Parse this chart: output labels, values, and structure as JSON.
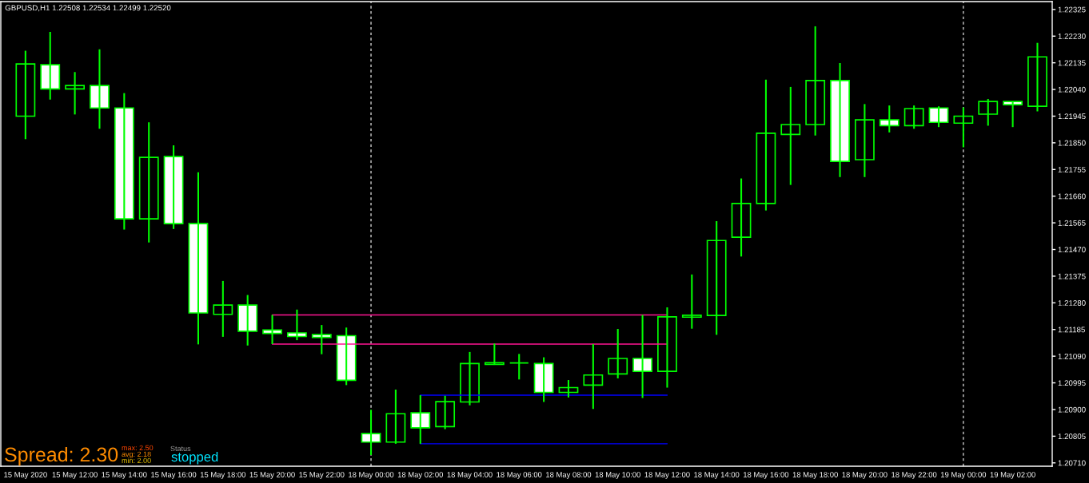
{
  "chart_data": {
    "type": "candlestick",
    "title": "GBPUSD,H1 1.22508 1.22534 1.22499 1.22520",
    "categories": [
      "15 May 2020",
      null,
      "15 May 12:00",
      null,
      "15 May 14:00",
      null,
      "15 May 16:00",
      null,
      "15 May 18:00",
      null,
      "15 May 20:00",
      null,
      "15 May 22:00",
      null,
      "18 May 00:00",
      null,
      "18 May 02:00",
      null,
      "18 May 04:00",
      null,
      "18 May 06:00",
      null,
      "18 May 08:00",
      null,
      "18 May 10:00",
      null,
      "18 May 12:00",
      null,
      "18 May 14:00",
      null,
      "18 May 16:00",
      null,
      "18 May 18:00",
      null,
      "18 May 20:00",
      null,
      "18 May 22:00",
      null,
      "19 May 00:00",
      null,
      "19 May 02:00",
      null
    ],
    "ohlc": [
      [
        1.21945,
        1.22178,
        1.21863,
        1.22131
      ],
      [
        1.22128,
        1.22245,
        1.22004,
        1.22042
      ],
      [
        1.22042,
        1.22102,
        1.21951,
        1.22054
      ],
      [
        1.22054,
        1.22183,
        1.219,
        1.21974
      ],
      [
        1.21974,
        1.22027,
        1.21541,
        1.21579
      ],
      [
        1.21579,
        1.21923,
        1.21495,
        1.21798
      ],
      [
        1.21801,
        1.21841,
        1.21543,
        1.21562
      ],
      [
        1.21562,
        1.21745,
        1.21132,
        1.21244
      ],
      [
        1.21239,
        1.21358,
        1.21159,
        1.21272
      ],
      [
        1.21272,
        1.21308,
        1.21128,
        1.21179
      ],
      [
        1.21183,
        1.21237,
        1.21133,
        1.21171
      ],
      [
        1.21173,
        1.21256,
        1.21147,
        1.2116
      ],
      [
        1.21167,
        1.21201,
        1.21097,
        1.21157
      ],
      [
        1.21163,
        1.21192,
        1.20987,
        1.21004
      ],
      [
        1.20814,
        1.20899,
        1.20738,
        1.20784
      ],
      [
        1.20784,
        1.20971,
        1.20778,
        1.20885
      ],
      [
        1.20888,
        1.20951,
        1.20778,
        1.20835
      ],
      [
        1.20839,
        1.20949,
        1.2083,
        1.20928
      ],
      [
        1.20927,
        1.21105,
        1.20915,
        1.21064
      ],
      [
        1.21061,
        1.21135,
        1.21059,
        1.21067
      ],
      [
        1.21066,
        1.21098,
        1.21007,
        1.21066
      ],
      [
        1.21064,
        1.21086,
        1.20927,
        1.20961
      ],
      [
        1.20961,
        1.21005,
        1.20943,
        1.20978
      ],
      [
        1.20987,
        1.21133,
        1.20902,
        1.21023
      ],
      [
        1.21027,
        1.21187,
        1.21011,
        1.21082
      ],
      [
        1.21082,
        1.21237,
        1.20941,
        1.21036
      ],
      [
        1.21036,
        1.21264,
        1.20978,
        1.2123
      ],
      [
        1.21229,
        1.21381,
        1.21188,
        1.21236
      ],
      [
        1.21235,
        1.21571,
        1.21166,
        1.21502
      ],
      [
        1.21514,
        1.21723,
        1.21445,
        1.21634
      ],
      [
        1.21634,
        1.22075,
        1.21609,
        1.21884
      ],
      [
        1.2188,
        1.22049,
        1.217,
        1.21915
      ],
      [
        1.21915,
        1.22265,
        1.21876,
        1.22072
      ],
      [
        1.22072,
        1.22134,
        1.21728,
        1.21784
      ],
      [
        1.2179,
        1.21988,
        1.21728,
        1.21932
      ],
      [
        1.21932,
        1.21983,
        1.21887,
        1.21911
      ],
      [
        1.21911,
        1.21983,
        1.219,
        1.21972
      ],
      [
        1.21974,
        1.2198,
        1.21906,
        1.21923
      ],
      [
        1.2192,
        1.21976,
        1.21834,
        1.21945
      ],
      [
        1.21952,
        1.22006,
        1.21911,
        1.21997
      ],
      [
        1.21997,
        1.21997,
        1.21906,
        1.21986
      ],
      [
        1.2198,
        1.22206,
        1.21962,
        1.22156
      ]
    ],
    "color": "#00ff00",
    "colors": [
      "#000000",
      "#ffffff",
      "#000000",
      "#ffffff",
      "#ffffff",
      "#000000",
      "#ffffff",
      "#ffffff",
      "#000000",
      "#ffffff",
      "#ffffff",
      "#ffffff",
      "#ffffff",
      "#ffffff",
      "#ffffff",
      "#000000",
      "#ffffff",
      "#000000",
      "#000000",
      "#000000",
      "#00ff00",
      "#ffffff",
      "#000000",
      "#000000",
      "#000000",
      "#ffffff",
      "#000000",
      "#000000",
      "#000000",
      "#000000",
      "#000000",
      "#000000",
      "#000000",
      "#ffffff",
      "#000000",
      "#ffffff",
      "#000000",
      "#ffffff",
      "#000000",
      "#000000",
      "#ffffff",
      "#000000"
    ],
    "ylim": [
      1.20698,
      1.22353
    ],
    "yticks": [
      {
        "value": 1.2071,
        "label": "1.20710"
      },
      1.20805,
      {
        "value": 1.209,
        "label": "1.20900"
      },
      1.20995,
      {
        "value": 1.2109,
        "label": "1.21090"
      },
      1.21185,
      {
        "value": 1.2128,
        "label": "1.21280"
      },
      1.21375,
      {
        "value": 1.2147,
        "label": "1.21470"
      },
      1.21565,
      {
        "value": 1.2166,
        "label": "1.21660"
      },
      1.21755,
      {
        "value": 1.2185,
        "label": "1.21850"
      },
      1.21945,
      {
        "value": 1.2204,
        "label": "1.22040"
      },
      1.22135,
      {
        "value": 1.2223,
        "label": "1.22230"
      },
      1.22325
    ],
    "series": [
      {
        "type": "line",
        "color": "#ff1493",
        "x": [
          "15 May 20:00",
          "18 May 12:00"
        ],
        "values": [
          1.21237,
          1.21237
        ]
      },
      {
        "type": "line",
        "color": "#ff1493",
        "x": [
          "15 May 20:00",
          "18 May 12:00"
        ],
        "values": [
          1.21133,
          1.21133
        ]
      },
      {
        "type": "line",
        "color": "#0000ff",
        "x": [
          "18 May 02:00",
          "18 May 12:00"
        ],
        "values": [
          1.20951,
          1.20951
        ]
      },
      {
        "type": "line",
        "color": "#0000ff",
        "x": [
          "18 May 02:00",
          "18 May 12:00"
        ],
        "values": [
          1.20778,
          1.20778
        ]
      }
    ],
    "ref_lines": [
      {
        "axis": "x",
        "value": "18 May 00:00",
        "color": "#ffffff",
        "line_style": "dashed"
      },
      {
        "axis": "x",
        "value": "19 May 00:00",
        "color": "#ffffff",
        "line_style": "dashed"
      }
    ],
    "annotations": [
      "Spread: 2.30",
      "max: 2.50",
      "avg: 2.18",
      "min: 2.00",
      "Status",
      "stopped"
    ]
  }
}
